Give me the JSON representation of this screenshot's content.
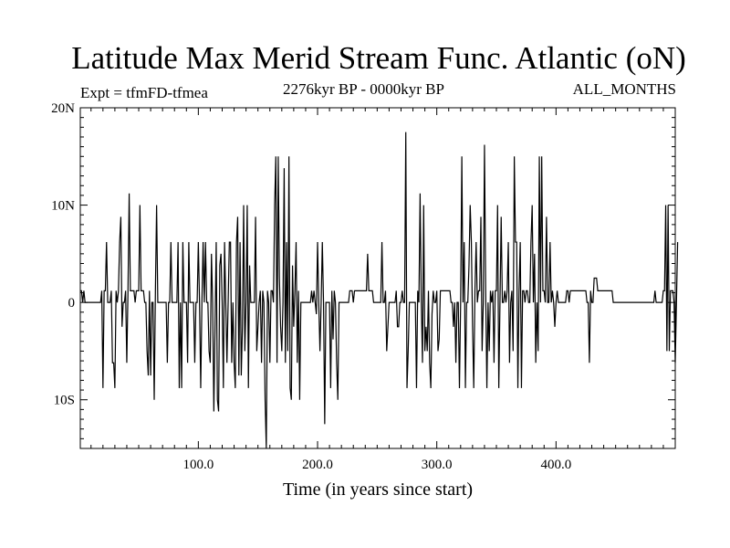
{
  "header": {
    "title": "Latitude Max Merid Stream Func. Atlantic (oN)",
    "expt": "Expt = tfmFD-tfmea",
    "period": "2276kyr BP - 0000kyr BP",
    "months": "ALL_MONTHS"
  },
  "chart_data": {
    "type": "line",
    "title": "Latitude Max Merid Stream Func. Atlantic (oN)",
    "xlabel": "Time (in years since start)",
    "ylabel": "",
    "xlim": [
      1,
      500
    ],
    "ylim": [
      -15,
      20
    ],
    "x_ticks": [
      100,
      200,
      300,
      400
    ],
    "x_tick_labels": [
      "100.0",
      "200.0",
      "300.0",
      "400.0"
    ],
    "y_ticks": [
      -10,
      0,
      10,
      20
    ],
    "y_tick_labels": [
      "10S",
      "0",
      "10N",
      "20N"
    ],
    "grid": false,
    "legend": "none",
    "line_color": "#000000",
    "series": [
      {
        "x_start": 1,
        "x_step": 1,
        "values": [
          1.2,
          1.2,
          0,
          1.2,
          0,
          0,
          0,
          0,
          0,
          0,
          0,
          0,
          0,
          0,
          0,
          0,
          0,
          0,
          1.2,
          -8.8,
          1.2,
          1.2,
          6.2,
          0,
          0,
          0,
          1.2,
          -6.2,
          -6.2,
          -8.8,
          1.2,
          0,
          1.2,
          6.2,
          8.8,
          -2.5,
          0,
          0,
          1.2,
          -6.2,
          1.2,
          11.2,
          1.2,
          1.2,
          1.2,
          1.2,
          0,
          1.2,
          1.2,
          1.2,
          10,
          1.2,
          1.2,
          1.2,
          0,
          0,
          -5,
          -7.5,
          1.2,
          -7.5,
          0,
          0,
          -10,
          1.2,
          10,
          0,
          0,
          0,
          0,
          0,
          0,
          0,
          0,
          -6.2,
          0,
          0,
          6.2,
          0,
          0,
          0,
          0,
          0,
          6.2,
          -8.8,
          0,
          -8.8,
          6.2,
          0,
          0,
          0,
          -6.2,
          6.2,
          0,
          0,
          0,
          0,
          -6.2,
          0,
          0,
          6.2,
          0,
          -8.8,
          0,
          6.2,
          0,
          6.2,
          0,
          0,
          -5,
          -6.2,
          5,
          0,
          -11.2,
          -2.5,
          6.2,
          -10,
          -11.2,
          3.8,
          5,
          0,
          -8.8,
          6.2,
          0,
          -6.2,
          0,
          6.2,
          6.2,
          -6.2,
          0,
          -6.2,
          -8.8,
          6.2,
          8.8,
          -7.5,
          6.2,
          -7.5,
          -2.5,
          10,
          -5,
          0,
          10,
          -8.8,
          3.8,
          0,
          0,
          0,
          0,
          8.8,
          -5,
          -2.5,
          0,
          1.2,
          -6.2,
          1.2,
          0,
          -10,
          -15,
          1.2,
          0,
          -6.2,
          1.2,
          1.2,
          0,
          10,
          15,
          -6.2,
          15,
          2.5,
          -2.5,
          -5,
          0,
          13.8,
          -6.2,
          6.2,
          -5,
          15,
          -8.8,
          -10,
          3.8,
          -2.5,
          1.2,
          6.2,
          -6.2,
          1.2,
          -10,
          0,
          0,
          0,
          0,
          0,
          0,
          0,
          0,
          0,
          1.2,
          0,
          1.2,
          0,
          -1.2,
          6.2,
          0,
          -5,
          0,
          6.2,
          0,
          -12.5,
          0,
          0,
          0,
          0,
          -8.8,
          1.2,
          -3.8,
          1.2,
          0,
          -6.2,
          -10,
          0,
          0,
          0,
          0,
          0,
          0,
          0,
          0,
          0,
          1.2,
          1.2,
          1.2,
          0,
          1.2,
          1.2,
          1.2,
          1.2,
          1.2,
          1.2,
          1.2,
          1.2,
          1.2,
          1.2,
          1.2,
          5,
          1.2,
          1.2,
          1.2,
          1.2,
          0,
          0,
          0,
          0,
          0,
          0,
          0,
          6.2,
          0,
          0,
          1.2,
          -5,
          -2.5,
          0,
          0,
          0,
          0,
          0,
          0,
          1.2,
          -2.5,
          -2.5,
          0,
          0,
          1.2,
          0,
          0,
          17.5,
          -8.8,
          -5,
          0,
          0,
          0,
          0,
          0,
          0,
          -8.8,
          1.2,
          0,
          11.2,
          0,
          -6.2,
          10,
          -5,
          -2.5,
          -5,
          1.2,
          -6.2,
          -8.8,
          -1.2,
          1.2,
          0,
          0,
          1.2,
          -5,
          -3.8,
          1.2,
          1.2,
          1.2,
          1.2,
          1.2,
          1.2,
          1.2,
          1.2,
          1.2,
          0,
          0,
          -2.5,
          0,
          -6.2,
          0,
          0,
          -8.8,
          0,
          15,
          0,
          6.2,
          -8.8,
          0,
          0,
          3.8,
          10,
          6.2,
          -2.5,
          -8.8,
          1.2,
          6.2,
          0,
          1.2,
          1.2,
          8.8,
          -5,
          0,
          16.2,
          1.2,
          -8.8,
          0,
          -5,
          1.2,
          0,
          1.2,
          -6.2,
          1.2,
          1.2,
          10,
          -8.8,
          0,
          8.8,
          0,
          0,
          1.2,
          0,
          1.2,
          6.2,
          -6.2,
          0,
          1.2,
          -5,
          15,
          6.2,
          6.2,
          -8.8,
          1.2,
          6.2,
          -8.8,
          1.2,
          1.2,
          0,
          1.2,
          1.2,
          0,
          0,
          6.2,
          10,
          0,
          5,
          -6.2,
          0,
          -5,
          15,
          0,
          15,
          1.2,
          1.2,
          0,
          8.8,
          0,
          0,
          6.2,
          0,
          1.2,
          0,
          -2.5,
          0,
          1.2,
          0,
          0,
          0,
          0,
          0,
          0,
          0,
          1.2,
          1.2,
          0,
          1.2,
          1.2,
          1.2,
          1.2,
          1.2,
          1.2,
          1.2,
          1.2,
          1.2,
          1.2,
          1.2,
          1.2,
          1.2,
          1.2,
          0,
          0,
          -6.2,
          1.2,
          0,
          0,
          2.5,
          2.5,
          2.5,
          1.2,
          1.2,
          1.2,
          1.2,
          1.2,
          1.2,
          1.2,
          1.2,
          1.2,
          1.2,
          1.2,
          1.2,
          1.2,
          0,
          0,
          0,
          0,
          0,
          0,
          0,
          0,
          0,
          0,
          0,
          0,
          0,
          0,
          0,
          0,
          0,
          0,
          0,
          0,
          0,
          0,
          0,
          0,
          0,
          0,
          0,
          0,
          0,
          0,
          0,
          0,
          0,
          0,
          0,
          1.2,
          0,
          0,
          0,
          0,
          0,
          0,
          1.2,
          1.2,
          10,
          -5,
          10,
          -5,
          1.2,
          1.2,
          1.2,
          0,
          -6.2,
          0,
          6.2
        ]
      }
    ]
  }
}
